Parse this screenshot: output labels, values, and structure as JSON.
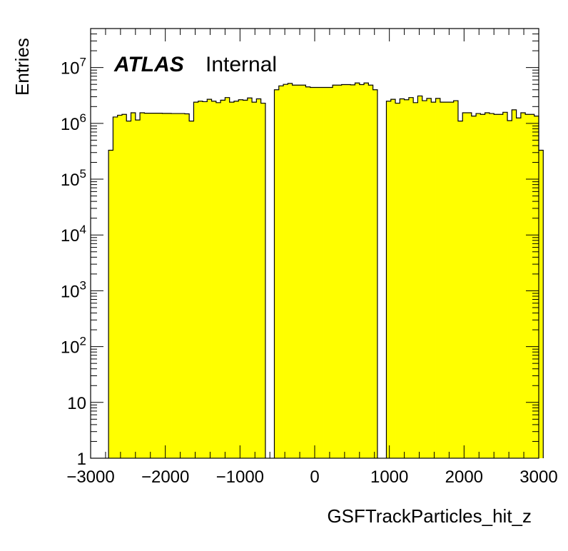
{
  "chart_data": {
    "type": "bar",
    "histogram": true,
    "xlabel": "GSFTrackParticles_hit_z",
    "ylabel": "Entries",
    "annotation": {
      "experiment": "ATLAS",
      "status": "Internal"
    },
    "xlim": [
      -3000,
      3000
    ],
    "ylim": [
      1,
      50000000
    ],
    "log_y": true,
    "grid": false,
    "fill_color": "#ffff00",
    "line_color": "#000000",
    "x_ticks": [
      {
        "value": -3000,
        "label": "−3000"
      },
      {
        "value": -2000,
        "label": "−2000"
      },
      {
        "value": -1000,
        "label": "−1000"
      },
      {
        "value": 0,
        "label": "0"
      },
      {
        "value": 1000,
        "label": "1000"
      },
      {
        "value": 2000,
        "label": "2000"
      },
      {
        "value": 3000,
        "label": "3000"
      }
    ],
    "y_ticks": [
      {
        "value": 1,
        "base": "1",
        "exp": ""
      },
      {
        "value": 10,
        "base": "10",
        "exp": ""
      },
      {
        "value": 100,
        "base": "10",
        "exp": "2"
      },
      {
        "value": 1000,
        "base": "10",
        "exp": "3"
      },
      {
        "value": 10000,
        "base": "10",
        "exp": "4"
      },
      {
        "value": 100000,
        "base": "10",
        "exp": "5"
      },
      {
        "value": 1000000,
        "base": "10",
        "exp": "6"
      },
      {
        "value": 10000000,
        "base": "10",
        "exp": "7"
      }
    ],
    "bin_width": 60,
    "bin_start": -2760,
    "values": [
      330000,
      1300000,
      1400000,
      1450000,
      1100000,
      1550000,
      1150000,
      1550000,
      1520000,
      1520000,
      1520000,
      1520000,
      1510000,
      1510000,
      1500000,
      1500000,
      1500000,
      1480000,
      1100000,
      2400000,
      2500000,
      2450000,
      2700000,
      2500000,
      2350000,
      2600000,
      2900000,
      2400000,
      2500000,
      2650000,
      2600000,
      2850000,
      2400000,
      2750000,
      2300000,
      0,
      0,
      4000000,
      4700000,
      5000000,
      5200000,
      4850000,
      4850000,
      4850000,
      4500000,
      4400000,
      4400000,
      4400000,
      4400000,
      4400000,
      4850000,
      4850000,
      4950000,
      4950000,
      4900000,
      5300000,
      4950000,
      5300000,
      4850000,
      4000000,
      0,
      0,
      2500000,
      2700000,
      2300000,
      2750000,
      2650000,
      2900000,
      2350000,
      3100000,
      2550000,
      2800000,
      2400000,
      2800000,
      2400000,
      2400000,
      2400000,
      2550000,
      1100000,
      1550000,
      1550000,
      1350000,
      1500000,
      1450000,
      1550000,
      1500000,
      1450000,
      1450000,
      1580000,
      1120000,
      1750000,
      1250000,
      1550000,
      1450000,
      1450000,
      1350000,
      330000
    ]
  }
}
